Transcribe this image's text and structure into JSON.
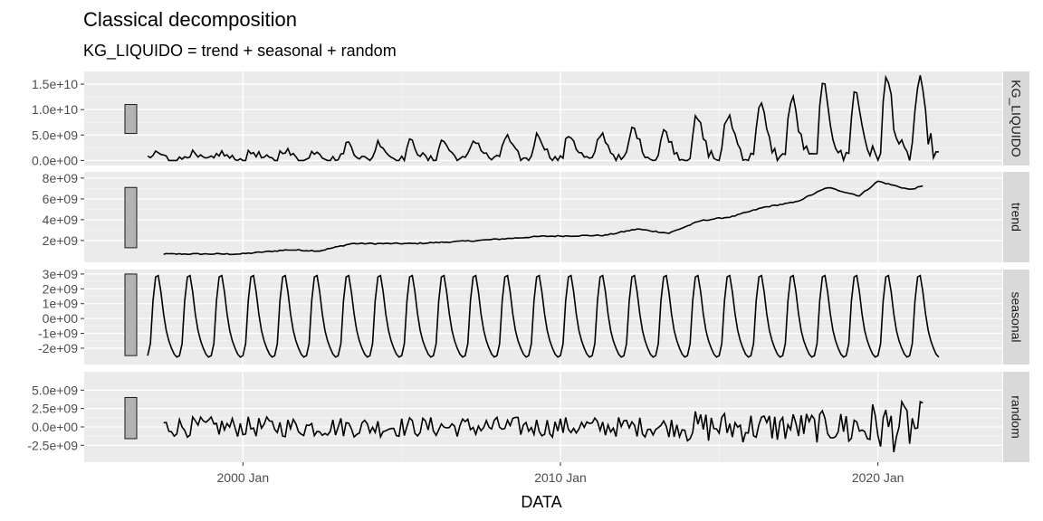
{
  "chart_data": {
    "type": "line",
    "title": "Classical decomposition",
    "subtitle": "KG_LIQUIDO = trend + seasonal + random",
    "xlabel": "DATA",
    "x_range": [
      "1995-01",
      "2023-12"
    ],
    "x_ticks": [
      {
        "date": "2000-01",
        "label": "2000 Jan"
      },
      {
        "date": "2010-01",
        "label": "2010 Jan"
      },
      {
        "date": "2020-01",
        "label": "2020 Jan"
      }
    ],
    "series_start": "1997-01",
    "grid": true,
    "panels": [
      {
        "name": "KG_LIQUIDO",
        "ylim": [
          -1000000000.0,
          17500000000.0
        ],
        "ticks": [
          {
            "value": 0,
            "label": "0.0e+00"
          },
          {
            "value": 5000000000,
            "label": "5.0e+09"
          },
          {
            "value": 10000000000,
            "label": "1.0e+10"
          },
          {
            "value": 15000000000,
            "label": "1.5e+10"
          }
        ],
        "scale_bar": [
          5300000000,
          11000000000
        ]
      },
      {
        "name": "trend",
        "ylim": [
          -100000000,
          8600000000
        ],
        "ticks": [
          {
            "value": 2000000000,
            "label": "2e+09"
          },
          {
            "value": 4000000000,
            "label": "4e+09"
          },
          {
            "value": 6000000000,
            "label": "6e+09"
          },
          {
            "value": 8000000000,
            "label": "8e+09"
          }
        ],
        "scale_bar": [
          1300000000,
          7100000000
        ],
        "start": "1997-07",
        "end": "2021-12",
        "knots": [
          [
            "1997-07",
            700000000
          ],
          [
            "1999-12",
            700000000
          ],
          [
            "2001-06",
            1100000000
          ],
          [
            "2002-06",
            1000000000
          ],
          [
            "2003-06",
            1700000000
          ],
          [
            "2005-06",
            1700000000
          ],
          [
            "2007-06",
            2000000000
          ],
          [
            "2009-06",
            2400000000
          ],
          [
            "2011-06",
            2500000000
          ],
          [
            "2012-06",
            3100000000
          ],
          [
            "2013-06",
            2700000000
          ],
          [
            "2014-06",
            3900000000
          ],
          [
            "2015-06",
            4300000000
          ],
          [
            "2016-06",
            5200000000
          ],
          [
            "2017-06",
            5700000000
          ],
          [
            "2018-06",
            7100000000
          ],
          [
            "2019-06",
            6300000000
          ],
          [
            "2020-01",
            7700000000
          ],
          [
            "2021-01",
            6900000000
          ],
          [
            "2021-12",
            7600000000
          ]
        ]
      },
      {
        "name": "seasonal",
        "ylim": [
          -3100000000,
          3300000000
        ],
        "ticks": [
          {
            "value": -2000000000,
            "label": "-2e+09"
          },
          {
            "value": -1000000000,
            "label": "-1e+09"
          },
          {
            "value": 0,
            "label": "0e+00"
          },
          {
            "value": 1000000000,
            "label": "1e+09"
          },
          {
            "value": 2000000000,
            "label": "2e+09"
          },
          {
            "value": 3000000000,
            "label": "3e+09"
          }
        ],
        "scale_bar": [
          -2500000000,
          3000000000
        ],
        "monthly_pattern": [
          -2500000000,
          -1700000000,
          1200000000,
          2800000000,
          2900000000,
          1800000000,
          300000000,
          -800000000,
          -1500000000,
          -2000000000,
          -2400000000,
          -2600000000
        ]
      },
      {
        "name": "random",
        "ylim": [
          -4800000000,
          7500000000
        ],
        "ticks": [
          {
            "value": -2500000000,
            "label": "-2.5e+09"
          },
          {
            "value": 0,
            "label": "0.0e+00"
          },
          {
            "value": 2500000000,
            "label": "2.5e+09"
          },
          {
            "value": 5000000000,
            "label": "5.0e+09"
          }
        ],
        "scale_bar": [
          -1600000000,
          4000000000
        ]
      }
    ]
  }
}
